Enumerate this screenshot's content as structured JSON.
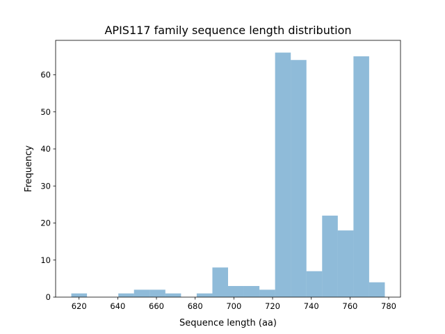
{
  "chart_data": {
    "type": "bar",
    "subtype": "histogram",
    "title": "APIS117 family sequence length distribution",
    "xlabel": "Sequence length (aa)",
    "ylabel": "Frequency",
    "bin_range": [
      616,
      778
    ],
    "bin_count": 20,
    "values": [
      1,
      0,
      0,
      1,
      2,
      2,
      1,
      0,
      1,
      8,
      3,
      3,
      2,
      66,
      64,
      7,
      22,
      18,
      65,
      4
    ],
    "xlim": [
      607.9,
      786.1
    ],
    "ylim": [
      0,
      69.3
    ],
    "xticks": [
      620,
      640,
      660,
      680,
      700,
      720,
      740,
      760,
      780
    ],
    "yticks": [
      0,
      10,
      20,
      30,
      40,
      50,
      60
    ],
    "bar_color": "#1f77b4",
    "bar_alpha": 0.5,
    "grid": false
  }
}
